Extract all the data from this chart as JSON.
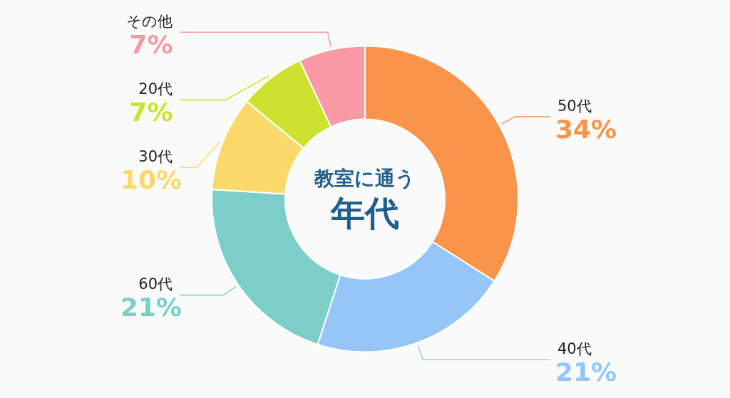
{
  "chart_data": {
    "type": "donut",
    "title": "教室に通う",
    "subtitle": "年代",
    "categories": [
      "50代",
      "40代",
      "60代",
      "30代",
      "20代",
      "その他"
    ],
    "values": [
      34,
      21,
      21,
      10,
      7,
      7
    ],
    "colors": [
      "#f9944a",
      "#96c6f7",
      "#7ccfc9",
      "#fad86a",
      "#cde22f",
      "#f79aa6"
    ],
    "value_labels": [
      "34%",
      "21%",
      "21%",
      "10%",
      "7%",
      "7%"
    ]
  }
}
